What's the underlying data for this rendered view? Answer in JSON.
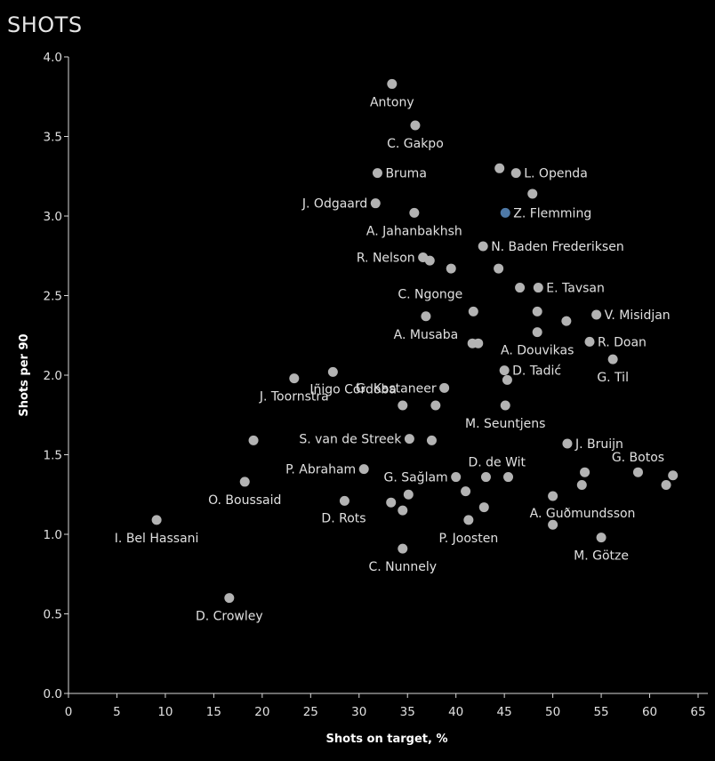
{
  "chart_data": {
    "type": "scatter",
    "title": "SHOTS",
    "xlabel": "Shots on target, %",
    "ylabel": "Shots per 90",
    "xlim": [
      0,
      65
    ],
    "ylim": [
      0,
      4
    ],
    "xticks": [
      "0",
      "5",
      "10",
      "15",
      "20",
      "25",
      "30",
      "35",
      "40",
      "45",
      "50",
      "55",
      "60",
      "65"
    ],
    "yticks": [
      "0.0",
      "0.5",
      "1.0",
      "1.5",
      "2.0",
      "2.5",
      "3.0",
      "3.5",
      "4.0"
    ],
    "grid": false,
    "colors": {
      "point": "#b3b3b3",
      "highlight": "#4e79a7",
      "background": "#000000",
      "text": "#e0e0e0"
    },
    "points": [
      {
        "x": 33.4,
        "y": 3.83,
        "label": "Antony",
        "anchor": "below"
      },
      {
        "x": 35.8,
        "y": 3.57,
        "label": "C. Gakpo",
        "anchor": "below"
      },
      {
        "x": 31.9,
        "y": 3.27,
        "label": "Bruma",
        "anchor": "right"
      },
      {
        "x": 44.5,
        "y": 3.3,
        "label": "",
        "anchor": ""
      },
      {
        "x": 46.2,
        "y": 3.27,
        "label": "L. Openda",
        "anchor": "right"
      },
      {
        "x": 47.9,
        "y": 3.14,
        "label": "",
        "anchor": ""
      },
      {
        "x": 31.7,
        "y": 3.08,
        "label": "J. Odgaard",
        "anchor": "left"
      },
      {
        "x": 35.7,
        "y": 3.02,
        "label": "A. Jahanbakhsh",
        "anchor": "below"
      },
      {
        "x": 45.1,
        "y": 3.02,
        "label": "Z. Flemming",
        "anchor": "right",
        "highlight": true
      },
      {
        "x": 42.8,
        "y": 2.81,
        "label": "N. Baden Frederiksen",
        "anchor": "right"
      },
      {
        "x": 36.6,
        "y": 2.74,
        "label": "R. Nelson",
        "anchor": "left"
      },
      {
        "x": 37.3,
        "y": 2.72,
        "label": "",
        "anchor": ""
      },
      {
        "x": 39.5,
        "y": 2.67,
        "label": "",
        "anchor": ""
      },
      {
        "x": 44.4,
        "y": 2.67,
        "label": "",
        "anchor": ""
      },
      {
        "x": 46.6,
        "y": 2.55,
        "label": "",
        "anchor": ""
      },
      {
        "x": 48.5,
        "y": 2.55,
        "label": "E. Tavsan",
        "anchor": "right"
      },
      {
        "x": 41.8,
        "y": 2.4,
        "label": "C. Ngonge",
        "anchor": "above-left"
      },
      {
        "x": 36.9,
        "y": 2.37,
        "label": "A. Musaba",
        "anchor": "below"
      },
      {
        "x": 48.4,
        "y": 2.4,
        "label": "",
        "anchor": ""
      },
      {
        "x": 51.4,
        "y": 2.34,
        "label": "",
        "anchor": ""
      },
      {
        "x": 54.5,
        "y": 2.38,
        "label": "V. Misidjan",
        "anchor": "right"
      },
      {
        "x": 48.4,
        "y": 2.27,
        "label": "A. Douvikas",
        "anchor": "below"
      },
      {
        "x": 41.7,
        "y": 2.2,
        "label": "",
        "anchor": ""
      },
      {
        "x": 42.3,
        "y": 2.2,
        "label": "",
        "anchor": ""
      },
      {
        "x": 53.8,
        "y": 2.21,
        "label": "R. Doan",
        "anchor": "right"
      },
      {
        "x": 56.2,
        "y": 2.1,
        "label": "G. Til",
        "anchor": "below"
      },
      {
        "x": 45.0,
        "y": 2.03,
        "label": "D. Tadić",
        "anchor": "right"
      },
      {
        "x": 45.3,
        "y": 1.97,
        "label": "",
        "anchor": ""
      },
      {
        "x": 27.3,
        "y": 2.02,
        "label": "Iñigo Córdoba",
        "anchor": "below-right"
      },
      {
        "x": 23.3,
        "y": 1.98,
        "label": "J. Toornstra",
        "anchor": "below"
      },
      {
        "x": 38.8,
        "y": 1.92,
        "label": "G. Kastaneer",
        "anchor": "left"
      },
      {
        "x": 34.5,
        "y": 1.81,
        "label": "",
        "anchor": ""
      },
      {
        "x": 37.9,
        "y": 1.81,
        "label": "",
        "anchor": ""
      },
      {
        "x": 45.1,
        "y": 1.81,
        "label": "M. Seuntjens",
        "anchor": "below"
      },
      {
        "x": 19.1,
        "y": 1.59,
        "label": "",
        "anchor": ""
      },
      {
        "x": 35.2,
        "y": 1.6,
        "label": "S. van de Streek",
        "anchor": "left"
      },
      {
        "x": 37.5,
        "y": 1.59,
        "label": "",
        "anchor": ""
      },
      {
        "x": 51.5,
        "y": 1.57,
        "label": "J. Bruijn",
        "anchor": "right"
      },
      {
        "x": 30.5,
        "y": 1.41,
        "label": "P. Abraham",
        "anchor": "left"
      },
      {
        "x": 58.8,
        "y": 1.39,
        "label": "G. Botos",
        "anchor": "above"
      },
      {
        "x": 53.3,
        "y": 1.39,
        "label": "",
        "anchor": ""
      },
      {
        "x": 40.0,
        "y": 1.36,
        "label": "G. Sağlam",
        "anchor": "left"
      },
      {
        "x": 43.1,
        "y": 1.36,
        "label": "D. de Wit",
        "anchor": "above-right"
      },
      {
        "x": 45.4,
        "y": 1.36,
        "label": "",
        "anchor": ""
      },
      {
        "x": 62.4,
        "y": 1.37,
        "label": "",
        "anchor": ""
      },
      {
        "x": 18.2,
        "y": 1.33,
        "label": "O. Boussaid",
        "anchor": "below"
      },
      {
        "x": 53.0,
        "y": 1.31,
        "label": "",
        "anchor": ""
      },
      {
        "x": 61.7,
        "y": 1.31,
        "label": "",
        "anchor": ""
      },
      {
        "x": 41.0,
        "y": 1.27,
        "label": "",
        "anchor": ""
      },
      {
        "x": 35.1,
        "y": 1.25,
        "label": "",
        "anchor": ""
      },
      {
        "x": 50.0,
        "y": 1.24,
        "label": "A. Guðmundsson",
        "anchor": "below-right"
      },
      {
        "x": 28.5,
        "y": 1.21,
        "label": "D. Rots",
        "anchor": "below-right"
      },
      {
        "x": 33.3,
        "y": 1.2,
        "label": "",
        "anchor": ""
      },
      {
        "x": 42.9,
        "y": 1.17,
        "label": "",
        "anchor": ""
      },
      {
        "x": 34.5,
        "y": 1.15,
        "label": "",
        "anchor": ""
      },
      {
        "x": 9.1,
        "y": 1.09,
        "label": "I. Bel Hassani",
        "anchor": "below"
      },
      {
        "x": 41.3,
        "y": 1.09,
        "label": "P. Joosten",
        "anchor": "below"
      },
      {
        "x": 50.0,
        "y": 1.06,
        "label": "",
        "anchor": ""
      },
      {
        "x": 55.0,
        "y": 0.98,
        "label": "M. Götze",
        "anchor": "below"
      },
      {
        "x": 34.5,
        "y": 0.91,
        "label": "C. Nunnely",
        "anchor": "below"
      },
      {
        "x": 16.6,
        "y": 0.6,
        "label": "D. Crowley",
        "anchor": "below"
      }
    ]
  }
}
